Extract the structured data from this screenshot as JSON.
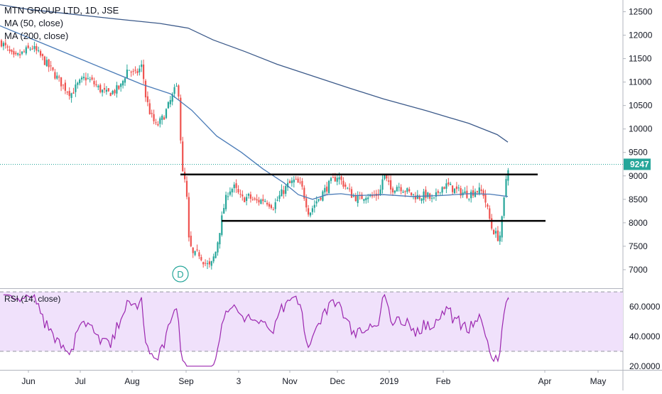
{
  "legend": {
    "title": "MTN GROUP LTD, 1D, JSE",
    "ma50": "MA (50, close)",
    "ma200": "MA (200, close)"
  },
  "rsi_legend": "RSI (14, close)",
  "colors": {
    "up": "#26a69a",
    "down": "#ef5350",
    "ma50": "#4a7bb7",
    "ma200": "#3c5a8a",
    "levels": "#000000",
    "rsi_line": "#9c27b0",
    "rsi_band": "#f0e1fb",
    "last_price_bg": "#26a69a",
    "marker": "#26a69a"
  },
  "chart_data": [
    {
      "type": "candlestick",
      "title": "MTN GROUP LTD, 1D, JSE",
      "y_ticks": [
        7000,
        7500,
        8000,
        8500,
        9000,
        9500,
        10000,
        10500,
        11000,
        11500,
        12000,
        12500
      ],
      "ylim": [
        6620,
        12750
      ],
      "x_ticks": [
        "Jun",
        "Jul",
        "Aug",
        "Sep",
        "3",
        "Nov",
        "Dec",
        "2019",
        "Feb",
        "Apr",
        "May"
      ],
      "last_price": 9247,
      "resistance_level": 9030,
      "support_level": 8040,
      "marker_label": "D",
      "ma200": [
        [
          0,
          12650
        ],
        [
          40,
          12550
        ],
        [
          100,
          12450
        ],
        [
          160,
          12350
        ],
        [
          225,
          12250
        ],
        [
          265,
          12150
        ],
        [
          300,
          11900
        ],
        [
          345,
          11650
        ],
        [
          390,
          11380
        ],
        [
          440,
          11130
        ],
        [
          490,
          10880
        ],
        [
          540,
          10640
        ],
        [
          600,
          10390
        ],
        [
          660,
          10120
        ],
        [
          700,
          9880
        ],
        [
          715,
          9720
        ]
      ],
      "ma50": [
        [
          0,
          12200
        ],
        [
          40,
          11950
        ],
        [
          80,
          11700
        ],
        [
          120,
          11450
        ],
        [
          160,
          11200
        ],
        [
          200,
          10950
        ],
        [
          240,
          10750
        ],
        [
          270,
          10400
        ],
        [
          305,
          9850
        ],
        [
          340,
          9500
        ],
        [
          370,
          9150
        ],
        [
          400,
          8850
        ],
        [
          420,
          8600
        ],
        [
          440,
          8500
        ],
        [
          460,
          8600
        ],
        [
          480,
          8620
        ],
        [
          500,
          8580
        ],
        [
          540,
          8600
        ],
        [
          580,
          8560
        ],
        [
          620,
          8580
        ],
        [
          660,
          8620
        ],
        [
          690,
          8610
        ],
        [
          715,
          8560
        ]
      ],
      "candles_approx": [
        {
          "t": "Jun-Aug",
          "range": [
            9900,
            12000
          ]
        },
        {
          "t": "Sep",
          "range": [
            6900,
            9400
          ]
        },
        {
          "t": "Oct-Jan",
          "range": [
            8000,
            9300
          ]
        },
        {
          "t": "Feb",
          "range": [
            7550,
            9300
          ]
        }
      ]
    },
    {
      "type": "line",
      "title": "RSI (14, close)",
      "y_ticks": [
        "20.0000",
        "40.0000",
        "60.0000"
      ],
      "ylim": [
        18,
        71
      ],
      "upper_band": 70,
      "lower_band": 30,
      "last_value": 65
    }
  ]
}
